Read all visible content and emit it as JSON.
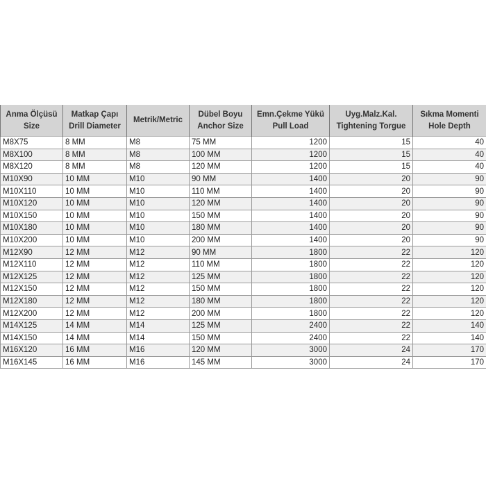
{
  "headers": [
    {
      "tr": "Anma Ölçüsü",
      "en": "Size"
    },
    {
      "tr": "Matkap Çapı",
      "en": "Drill Diameter"
    },
    {
      "tr": "Metrik/Metric",
      "en": ""
    },
    {
      "tr": "Dübel Boyu",
      "en": "Anchor Size"
    },
    {
      "tr": "Emn.Çekme Yükü",
      "en": "Pull Load"
    },
    {
      "tr": "Uyg.Malz.Kal.",
      "en": "Tightening Torgue"
    },
    {
      "tr": "Sıkma Momenti",
      "en": "Hole Depth"
    }
  ],
  "rows": [
    [
      "M8X75",
      "8 MM",
      "M8",
      "75 MM",
      "1200",
      "15",
      "40"
    ],
    [
      "M8X100",
      "8 MM",
      "M8",
      "100 MM",
      "1200",
      "15",
      "40"
    ],
    [
      "M8X120",
      "8 MM",
      "M8",
      "120 MM",
      "1200",
      "15",
      "40"
    ],
    [
      "M10X90",
      "10 MM",
      "M10",
      "90 MM",
      "1400",
      "20",
      "90"
    ],
    [
      "M10X110",
      "10 MM",
      "M10",
      "110 MM",
      "1400",
      "20",
      "90"
    ],
    [
      "M10X120",
      "10 MM",
      "M10",
      "120 MM",
      "1400",
      "20",
      "90"
    ],
    [
      "M10X150",
      "10 MM",
      "M10",
      "150 MM",
      "1400",
      "20",
      "90"
    ],
    [
      "M10X180",
      "10 MM",
      "M10",
      "180 MM",
      "1400",
      "20",
      "90"
    ],
    [
      "M10X200",
      "10 MM",
      "M10",
      "200 MM",
      "1400",
      "20",
      "90"
    ],
    [
      "M12X90",
      "12 MM",
      "M12",
      "90 MM",
      "1800",
      "22",
      "120"
    ],
    [
      "M12X110",
      "12 MM",
      "M12",
      "110 MM",
      "1800",
      "22",
      "120"
    ],
    [
      "M12X125",
      "12 MM",
      "M12",
      "125 MM",
      "1800",
      "22",
      "120"
    ],
    [
      "M12X150",
      "12 MM",
      "M12",
      "150 MM",
      "1800",
      "22",
      "120"
    ],
    [
      "M12X180",
      "12 MM",
      "M12",
      "180 MM",
      "1800",
      "22",
      "120"
    ],
    [
      "M12X200",
      "12 MM",
      "M12",
      "200 MM",
      "1800",
      "22",
      "120"
    ],
    [
      "M14X125",
      "14 MM",
      "M14",
      "125 MM",
      "2400",
      "22",
      "140"
    ],
    [
      "M14X150",
      "14 MM",
      "M14",
      "150 MM",
      "2400",
      "22",
      "140"
    ],
    [
      "M16X120",
      "16 MM",
      "M16",
      "120 MM",
      "3000",
      "24",
      "170"
    ],
    [
      "M16X145",
      "16 MM",
      "M16",
      "145 MM",
      "3000",
      "24",
      "170"
    ]
  ]
}
